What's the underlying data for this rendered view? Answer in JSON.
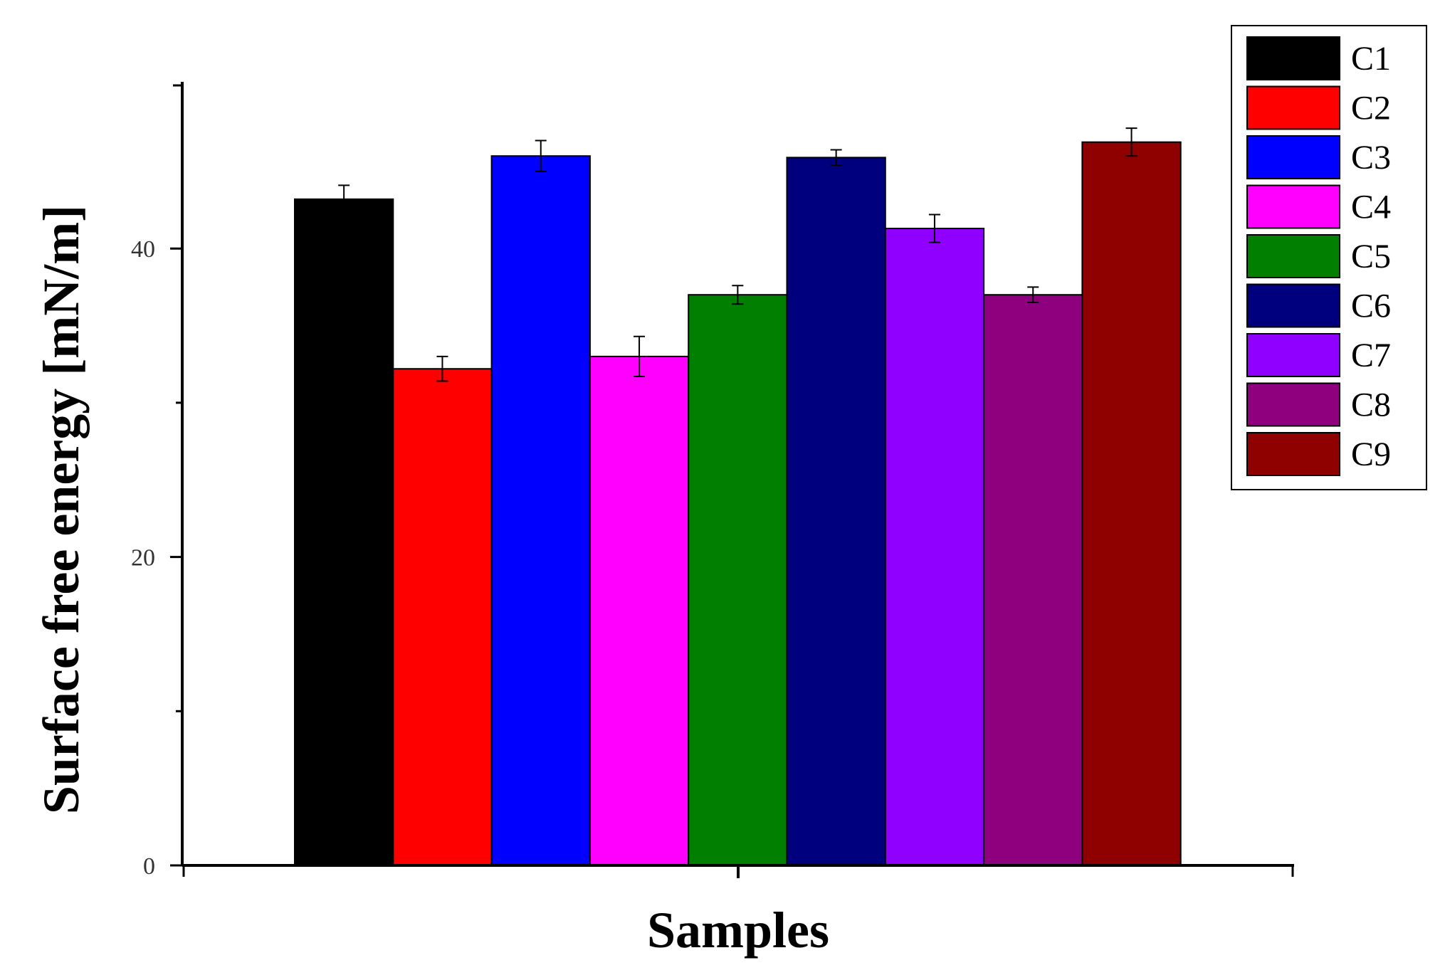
{
  "chart_data": {
    "type": "bar",
    "title": "",
    "xlabel": "Samples",
    "ylabel": "Surface free energy [mN/m]",
    "ylim": [
      0,
      50
    ],
    "yticks": [
      0,
      20,
      40
    ],
    "grid": false,
    "legend_position": "top-right",
    "series": [
      {
        "name": "C1",
        "value": 43.2,
        "error": 0.9,
        "color": "#000000"
      },
      {
        "name": "C2",
        "value": 32.2,
        "error": 0.8,
        "color": "#ff0000"
      },
      {
        "name": "C3",
        "value": 46.0,
        "error": 1.0,
        "color": "#0000ff"
      },
      {
        "name": "C4",
        "value": 33.0,
        "error": 1.3,
        "color": "#ff00ff"
      },
      {
        "name": "C5",
        "value": 37.0,
        "error": 0.6,
        "color": "#007f00"
      },
      {
        "name": "C6",
        "value": 45.9,
        "error": 0.5,
        "color": "#00007f"
      },
      {
        "name": "C7",
        "value": 41.3,
        "error": 0.9,
        "color": "#8f00ff"
      },
      {
        "name": "C8",
        "value": 37.0,
        "error": 0.5,
        "color": "#8f007f"
      },
      {
        "name": "C9",
        "value": 46.9,
        "error": 0.9,
        "color": "#8f0000"
      }
    ]
  }
}
